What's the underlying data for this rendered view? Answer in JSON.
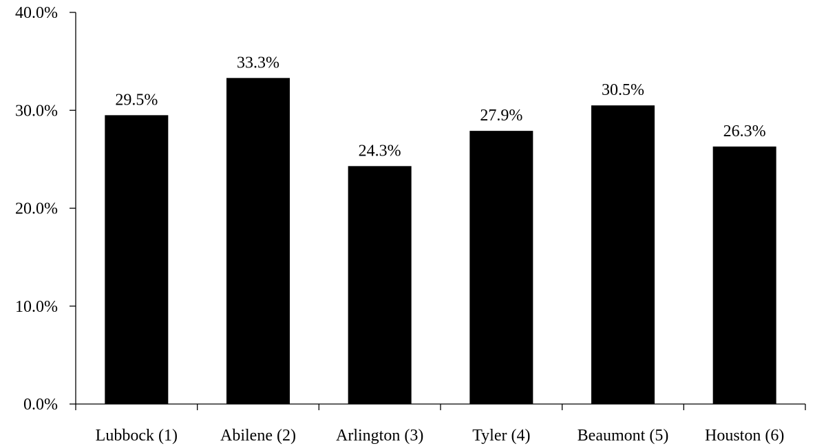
{
  "chart_data": {
    "type": "bar",
    "title": "",
    "xlabel": "",
    "ylabel": "",
    "categories": [
      "Lubbock (1)",
      "Abilene (2)",
      "Arlington (3)",
      "Tyler (4)",
      "Beaumont (5)",
      "Houston (6)"
    ],
    "values": [
      29.5,
      33.3,
      24.3,
      27.9,
      30.5,
      26.3
    ],
    "data_labels": [
      "29.5%",
      "33.3%",
      "24.3%",
      "27.9%",
      "30.5%",
      "26.3%"
    ],
    "ylim": [
      0,
      40
    ],
    "yticks": [
      0,
      10,
      20,
      30,
      40
    ],
    "ytick_labels": [
      "0.0%",
      "10.0%",
      "20.0%",
      "30.0%",
      "40.0%"
    ],
    "grid": false,
    "legend": "none",
    "colors": {
      "bar": "#000000",
      "axis": "#000000",
      "text": "#000000"
    }
  }
}
